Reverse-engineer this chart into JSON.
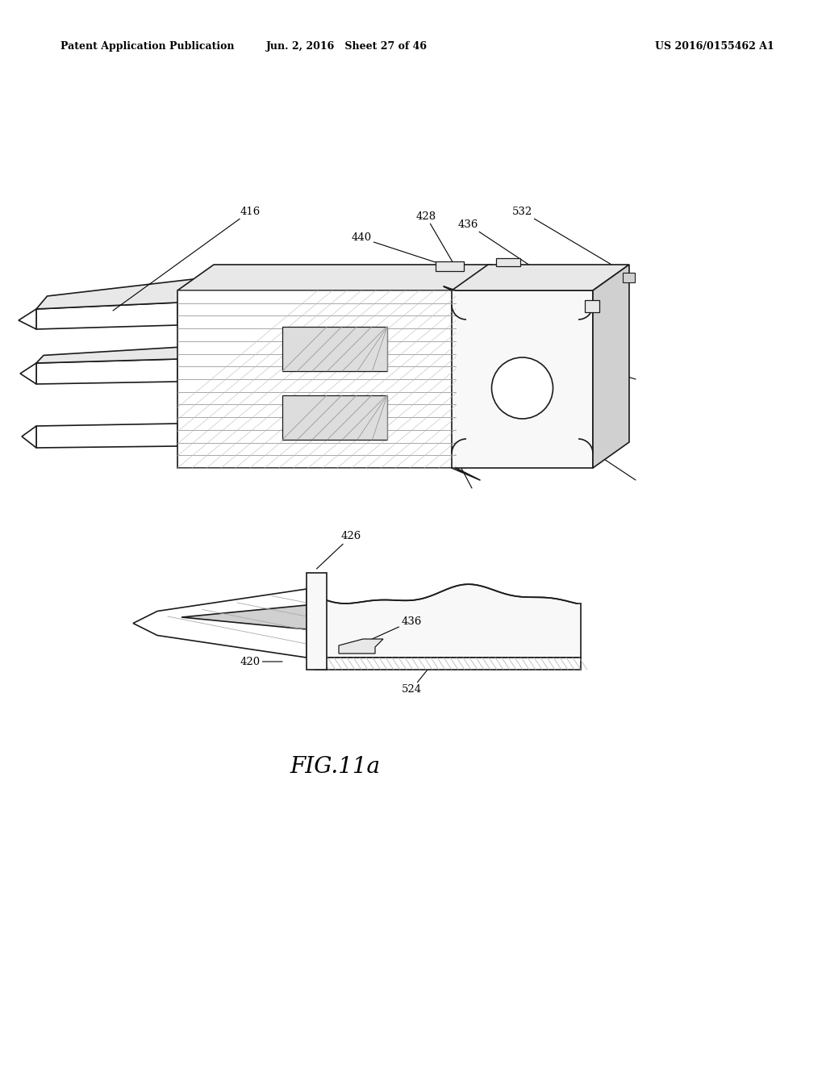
{
  "background_color": "#ffffff",
  "header_left": "Patent Application Publication",
  "header_center": "Jun. 2, 2016   Sheet 27 of 46",
  "header_right": "US 2016/0155462 A1",
  "figure_label": "FIG.11a",
  "line_color": "#1a1a1a",
  "fill_light": "#f8f8f8",
  "fill_mid": "#e8e8e8",
  "fill_dark": "#d0d0d0",
  "hatch_color": "#888888"
}
